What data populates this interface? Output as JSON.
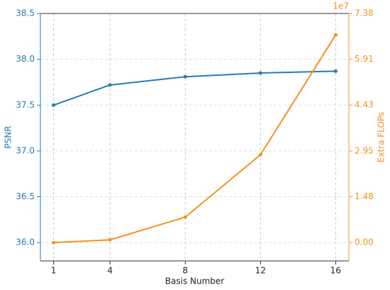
{
  "chart_data": {
    "type": "line",
    "x_label": "Basis Number",
    "y_label": "PSNR",
    "y2_label": "Extra FLOPs",
    "y2_scale_label": "1e7",
    "x": [
      1,
      4,
      8,
      12,
      16
    ],
    "xlim": [
      0.3,
      16.7
    ],
    "xticks": [
      1,
      4,
      8,
      12,
      16
    ],
    "ylim": [
      35.8,
      38.5
    ],
    "yticks": [
      {
        "value": 36.0,
        "label": "36.0"
      },
      36.5,
      {
        "value": 37.0,
        "label": "37.0"
      },
      37.5,
      {
        "value": 38.0,
        "label": "38.0"
      },
      38.5
    ],
    "y2lim": [
      -0.59,
      7.38
    ],
    "y2ticks": [
      {
        "value": 0,
        "label": "0.00"
      },
      1.48,
      2.95,
      4.43,
      5.91,
      7.38
    ],
    "grid": true,
    "series": [
      {
        "name": "PSNR",
        "color": "#2a7ab4",
        "values": [
          37.5,
          37.72,
          37.81,
          37.85,
          37.87
        ]
      },
      {
        "name": "Extra FLOPs",
        "color": "#f59120",
        "axis": "y2",
        "values": [
          0,
          0.09,
          0.82,
          2.83,
          6.69
        ]
      }
    ]
  }
}
